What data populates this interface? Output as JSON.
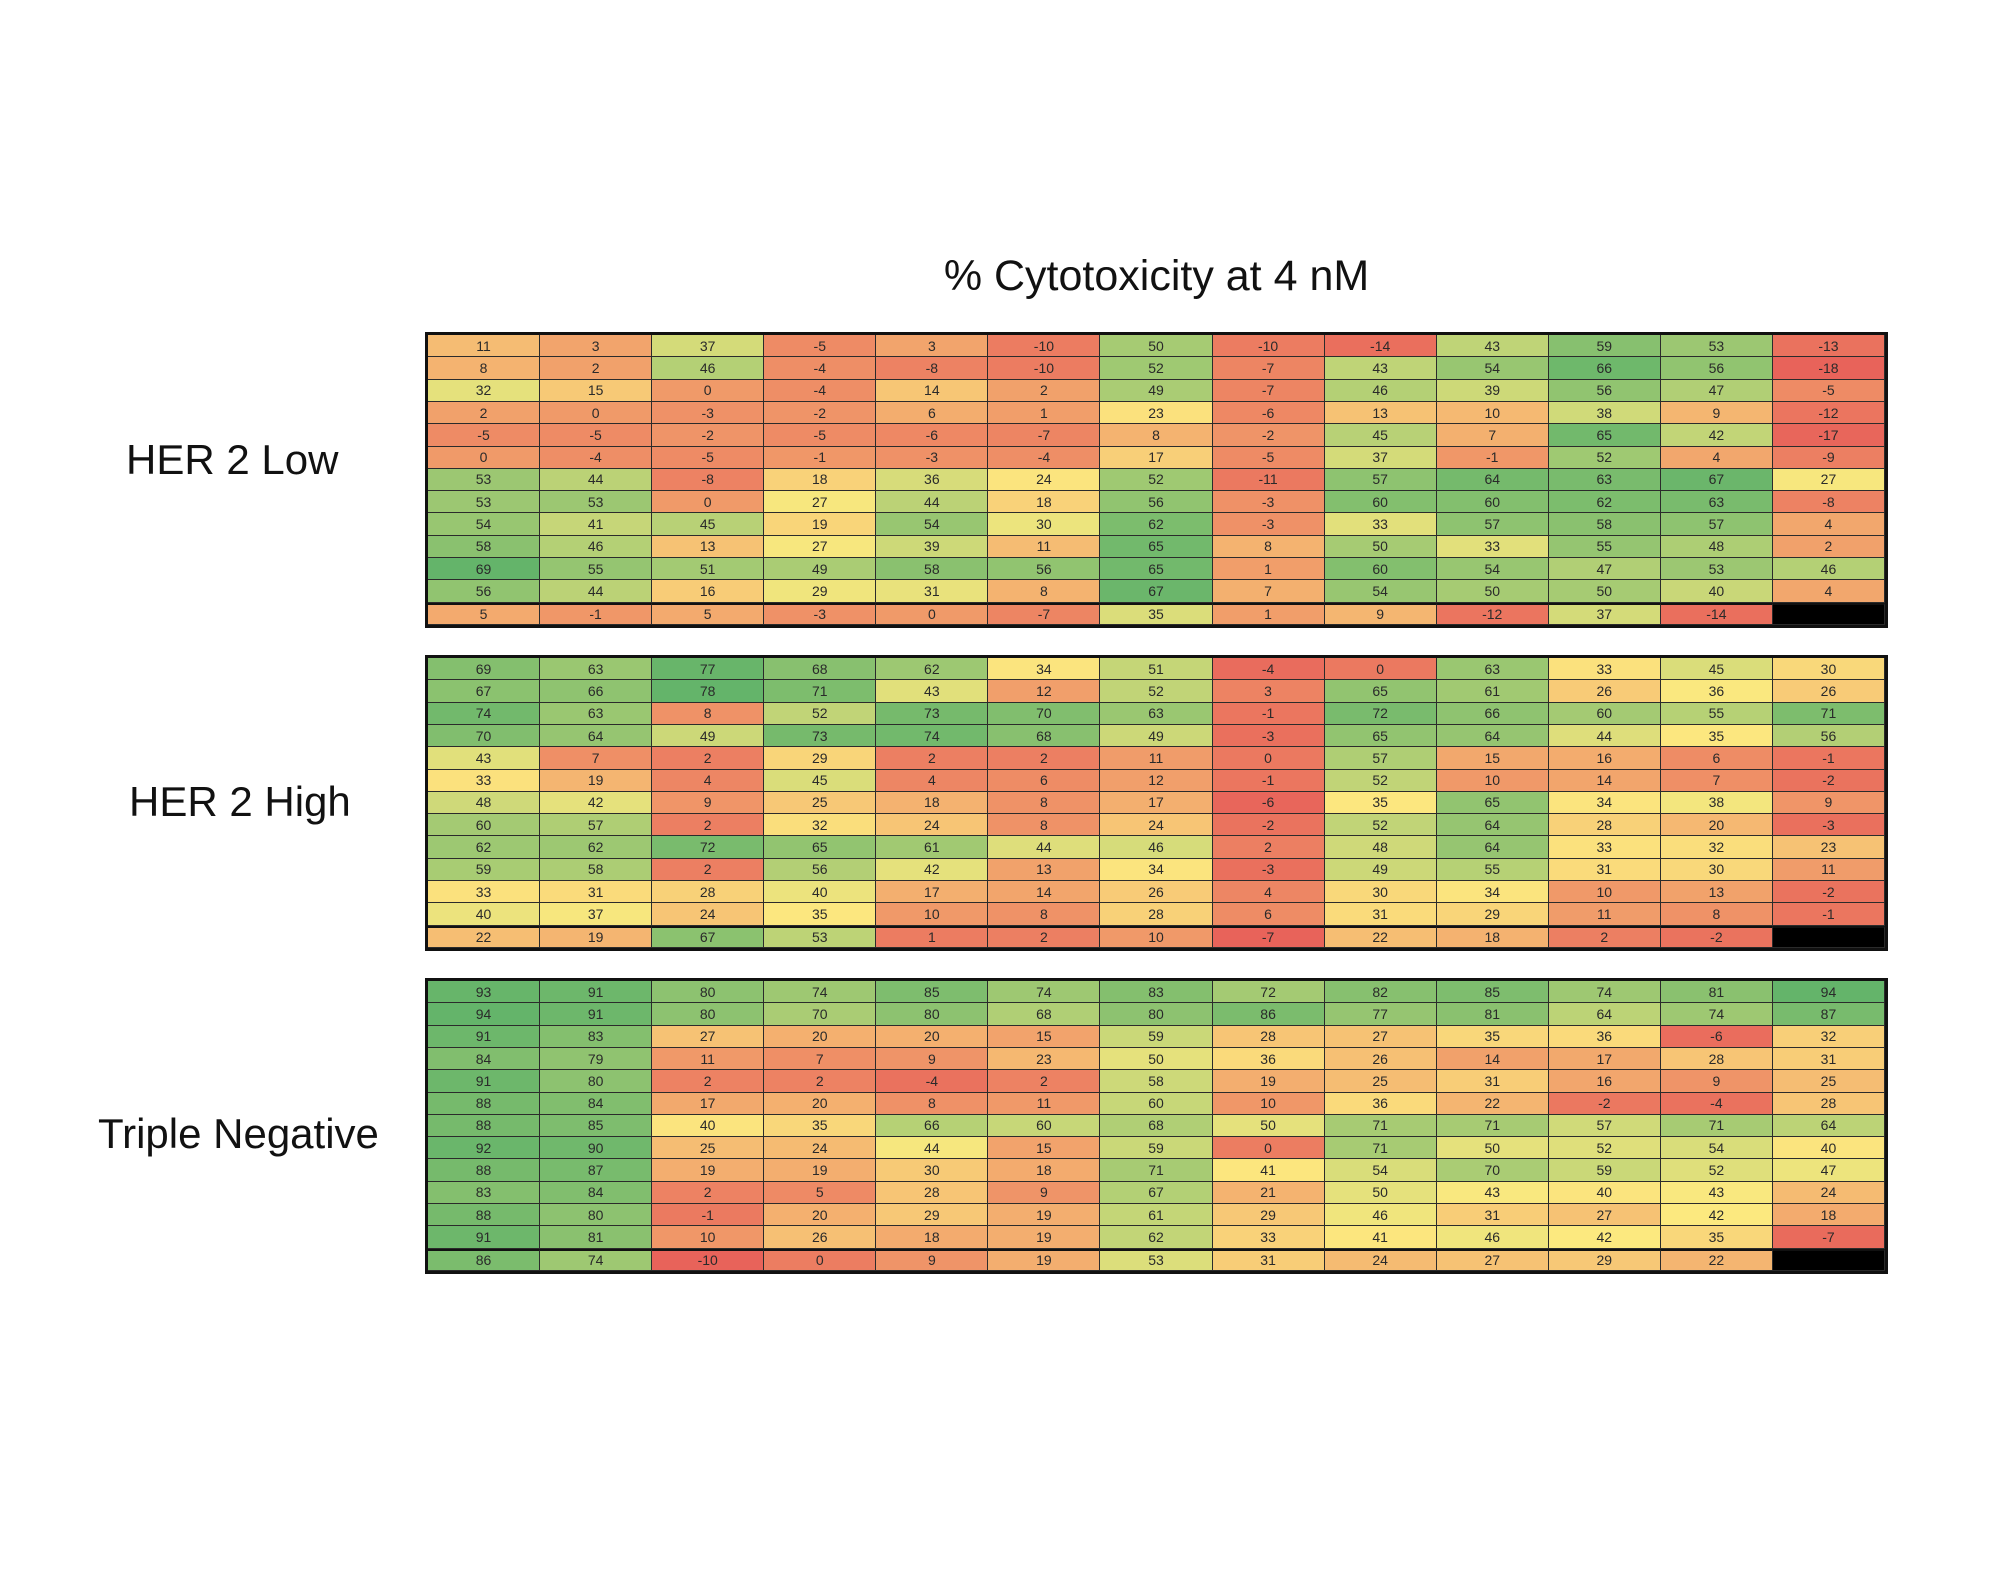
{
  "chart_data": {
    "type": "heatmap",
    "title": "% Cytotoxicity at 4 nM",
    "colorscale": {
      "low": "#e8635a",
      "mid": "#fce97f",
      "high": "#64b46a"
    },
    "groups": [
      {
        "label": "HER 2 Low",
        "rows": [
          [
            11,
            3,
            37,
            -5,
            3,
            -10,
            50,
            -10,
            -14,
            43,
            59,
            53,
            -13
          ],
          [
            8,
            2,
            46,
            -4,
            -8,
            -10,
            52,
            -7,
            43,
            54,
            66,
            56,
            -18
          ],
          [
            32,
            15,
            0,
            -4,
            14,
            2,
            49,
            -7,
            46,
            39,
            56,
            47,
            -5
          ],
          [
            2,
            0,
            -3,
            -2,
            6,
            1,
            23,
            -6,
            13,
            10,
            38,
            9,
            -12
          ],
          [
            -5,
            -5,
            -2,
            -5,
            -6,
            -7,
            8,
            -2,
            45,
            7,
            65,
            42,
            -17
          ],
          [
            0,
            -4,
            -5,
            -1,
            -3,
            -4,
            17,
            -5,
            37,
            -1,
            52,
            4,
            -9
          ],
          [
            53,
            44,
            -8,
            18,
            36,
            24,
            52,
            -11,
            57,
            64,
            63,
            67,
            27
          ],
          [
            53,
            53,
            0,
            27,
            44,
            18,
            56,
            -3,
            60,
            60,
            62,
            63,
            -8
          ],
          [
            54,
            41,
            45,
            19,
            54,
            30,
            62,
            -3,
            33,
            57,
            58,
            57,
            4
          ],
          [
            58,
            46,
            13,
            27,
            39,
            11,
            65,
            8,
            50,
            33,
            55,
            48,
            2
          ],
          [
            69,
            55,
            51,
            49,
            58,
            56,
            65,
            1,
            60,
            54,
            47,
            53,
            46
          ],
          [
            56,
            44,
            16,
            29,
            31,
            8,
            67,
            7,
            54,
            50,
            50,
            40,
            4
          ],
          [
            5,
            -1,
            5,
            -3,
            0,
            -7,
            35,
            1,
            9,
            -12,
            37,
            -14,
            null
          ]
        ]
      },
      {
        "label": "HER 2 High",
        "rows": [
          [
            69,
            63,
            77,
            68,
            62,
            34,
            51,
            -4,
            0,
            63,
            33,
            45,
            30
          ],
          [
            67,
            66,
            78,
            71,
            43,
            12,
            52,
            3,
            65,
            61,
            26,
            36,
            26
          ],
          [
            74,
            63,
            8,
            52,
            73,
            70,
            63,
            -1,
            72,
            66,
            60,
            55,
            71
          ],
          [
            70,
            64,
            49,
            73,
            74,
            68,
            49,
            -3,
            65,
            64,
            44,
            35,
            56
          ],
          [
            43,
            7,
            2,
            29,
            2,
            2,
            11,
            0,
            57,
            15,
            16,
            6,
            -1
          ],
          [
            33,
            19,
            4,
            45,
            4,
            6,
            12,
            -1,
            52,
            10,
            14,
            7,
            -2
          ],
          [
            48,
            42,
            9,
            25,
            18,
            8,
            17,
            -6,
            35,
            65,
            34,
            38,
            9
          ],
          [
            60,
            57,
            2,
            32,
            24,
            8,
            24,
            -2,
            52,
            64,
            28,
            20,
            -3
          ],
          [
            62,
            62,
            72,
            65,
            61,
            44,
            46,
            2,
            48,
            64,
            33,
            32,
            23
          ],
          [
            59,
            58,
            2,
            56,
            42,
            13,
            34,
            -3,
            49,
            55,
            31,
            30,
            11
          ],
          [
            33,
            31,
            28,
            40,
            17,
            14,
            26,
            4,
            30,
            34,
            10,
            13,
            -2
          ],
          [
            40,
            37,
            24,
            35,
            10,
            8,
            28,
            6,
            31,
            29,
            11,
            8,
            -1
          ],
          [
            22,
            19,
            67,
            53,
            1,
            2,
            10,
            -7,
            22,
            18,
            2,
            -2,
            null
          ]
        ]
      },
      {
        "label": "Triple Negative",
        "rows": [
          [
            93,
            91,
            80,
            74,
            85,
            74,
            83,
            72,
            82,
            85,
            74,
            81,
            94
          ],
          [
            94,
            91,
            80,
            70,
            80,
            68,
            80,
            86,
            77,
            81,
            64,
            74,
            87
          ],
          [
            91,
            83,
            27,
            20,
            20,
            15,
            59,
            28,
            27,
            35,
            36,
            -6,
            32
          ],
          [
            84,
            79,
            11,
            7,
            9,
            23,
            50,
            36,
            26,
            14,
            17,
            28,
            31
          ],
          [
            91,
            80,
            2,
            2,
            -4,
            2,
            58,
            19,
            25,
            31,
            16,
            9,
            25
          ],
          [
            88,
            84,
            17,
            20,
            8,
            11,
            60,
            10,
            36,
            22,
            -2,
            -4,
            28
          ],
          [
            88,
            85,
            40,
            35,
            66,
            60,
            68,
            50,
            71,
            71,
            57,
            71,
            64
          ],
          [
            92,
            90,
            25,
            24,
            44,
            15,
            59,
            0,
            71,
            50,
            52,
            54,
            40
          ],
          [
            88,
            87,
            19,
            19,
            30,
            18,
            71,
            41,
            54,
            70,
            59,
            52,
            47
          ],
          [
            83,
            84,
            2,
            5,
            28,
            9,
            67,
            21,
            50,
            43,
            40,
            43,
            24
          ],
          [
            88,
            80,
            -1,
            20,
            29,
            19,
            61,
            29,
            46,
            31,
            27,
            42,
            18
          ],
          [
            91,
            81,
            10,
            26,
            18,
            19,
            62,
            33,
            41,
            46,
            42,
            35,
            -7
          ],
          [
            86,
            74,
            -10,
            0,
            9,
            19,
            53,
            31,
            24,
            27,
            29,
            22,
            null
          ]
        ]
      }
    ]
  }
}
